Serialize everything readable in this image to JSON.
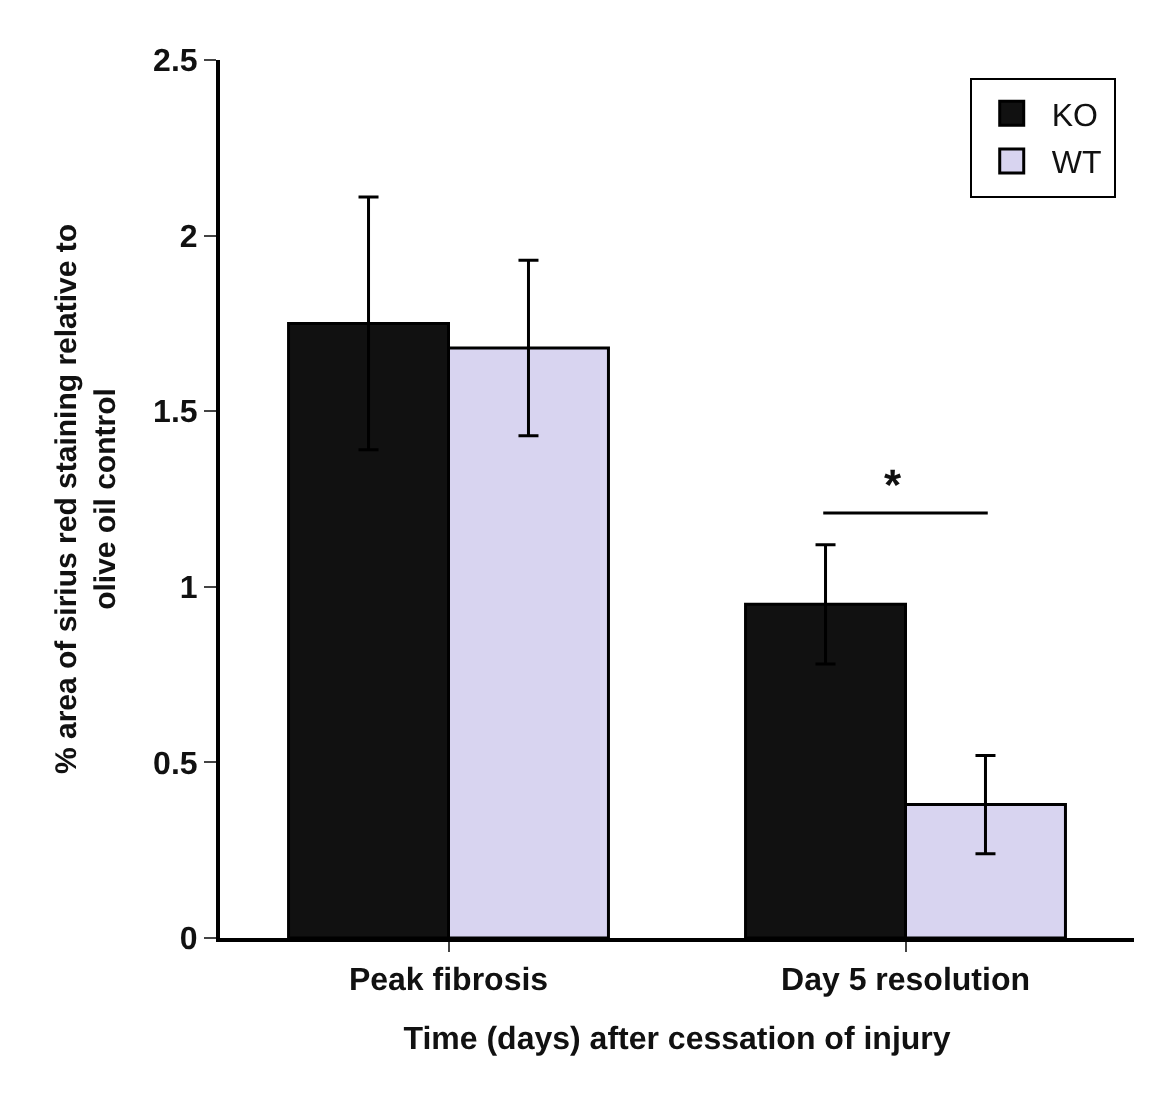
{
  "chart_data": {
    "type": "bar",
    "xlabel": "Time (days) after cessation of injury",
    "ylabel": "% area of sirius red staining relative to\nolive oil control",
    "categories": [
      "Peak fibrosis",
      "Day 5 resolution"
    ],
    "series": [
      {
        "name": "KO",
        "color": "#111111",
        "values": [
          1.75,
          0.95
        ],
        "errors": [
          0.36,
          0.17
        ]
      },
      {
        "name": "WT",
        "color": "#d8d4f0",
        "values": [
          1.68,
          0.38
        ],
        "errors": [
          0.25,
          0.14
        ]
      }
    ],
    "ylim": [
      0,
      2.5
    ],
    "yticks": [
      0,
      0.5,
      1,
      1.5,
      2,
      2.5
    ],
    "legend": "top right",
    "annotations": [
      "*"
    ]
  }
}
